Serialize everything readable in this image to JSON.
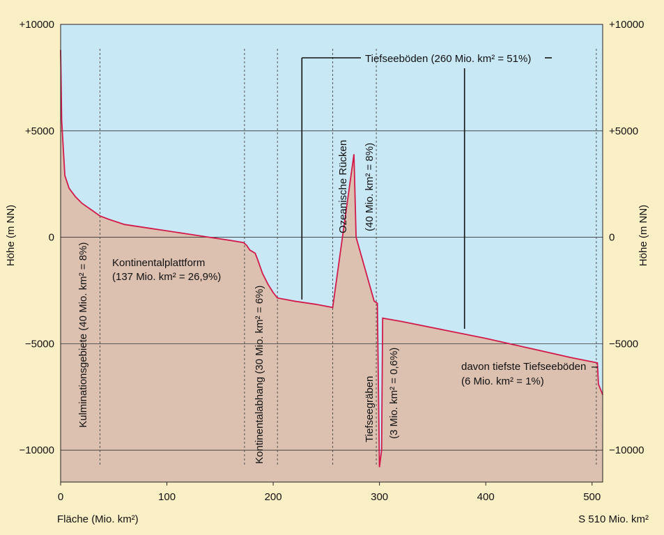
{
  "chart_data": {
    "type": "area",
    "title": "",
    "xlabel": "Fläche (Mio. km²)",
    "xlabel_right": "S 510 Mio. km²",
    "ylabel": "Höhe (m NN)",
    "xlim": [
      0,
      510
    ],
    "ylim": [
      -11500,
      10000
    ],
    "x_ticks": [
      {
        "value": 0,
        "label": "0"
      },
      {
        "value": 100,
        "label": "100"
      },
      {
        "value": 200,
        "label": "200"
      },
      {
        "value": 300,
        "label": "300"
      },
      {
        "value": 400,
        "label": "400"
      },
      {
        "value": 500,
        "label": "500"
      }
    ],
    "y_ticks": [
      {
        "value": 10000,
        "label": "+10000"
      },
      {
        "value": 5000,
        "label": "+5000"
      },
      {
        "value": 0,
        "label": "0"
      },
      {
        "value": -5000,
        "label": "−5000"
      },
      {
        "value": -10000,
        "label": "−10000"
      }
    ],
    "colors": {
      "background": "#fbefc6",
      "sea": "#c9e8f5",
      "land": "#dcc0b0",
      "profile_line": "#d2194a",
      "gridline": "#333333"
    },
    "series": [
      {
        "x": [
          0,
          1,
          4,
          8,
          14,
          20,
          30,
          37,
          45,
          60,
          80,
          100,
          120,
          140,
          160,
          172,
          175,
          178,
          183,
          185,
          190,
          195,
          200,
          204,
          220,
          240,
          256,
          276,
          278,
          295,
          298,
          300,
          302,
          303,
          320,
          360,
          400,
          440,
          480,
          505,
          506,
          510
        ],
        "y": [
          8800,
          5500,
          2900,
          2300,
          1900,
          1600,
          1250,
          1000,
          850,
          600,
          450,
          300,
          150,
          0,
          -150,
          -250,
          -380,
          -600,
          -750,
          -1000,
          -1700,
          -2200,
          -2600,
          -2850,
          -3000,
          -3150,
          -3300,
          3900,
          0,
          -3000,
          -3100,
          -10800,
          -10000,
          -3800,
          -3950,
          -4350,
          -4750,
          -5200,
          -5650,
          -5900,
          -6900,
          -7400
        ]
      }
    ],
    "dividers": [
      {
        "x": 37
      },
      {
        "x": 173
      },
      {
        "x": 204
      },
      {
        "x": 256
      },
      {
        "x": 297
      },
      {
        "x": 504
      }
    ],
    "annotations": {
      "kulmination": {
        "label": "Kulminationsgebiete (40 Mio. km² = 8%)"
      },
      "plattform": {
        "line1": "Kontinentalplattform",
        "line2": "(137 Mio. km² = 26,9%)"
      },
      "abhang": {
        "label": "Kontinentalabhang (30 Mio. km² = 6%)"
      },
      "tiefseeboeden": {
        "label": "Tiefseeböden (260 Mio. km² = 51%)",
        "x_start": 227,
        "x_end": 380
      },
      "ruecken": {
        "line1": "Ozeanische Rücken",
        "line2": "(40 Mio. km² = 8%)"
      },
      "graeben": {
        "line1": "Tiefseegräben",
        "line2": "(3 Mio. km² = 0,6%)"
      },
      "tiefste": {
        "line1": "davon tiefste Tiefseeböden",
        "line2": "(6 Mio. km² = 1%)"
      }
    }
  }
}
